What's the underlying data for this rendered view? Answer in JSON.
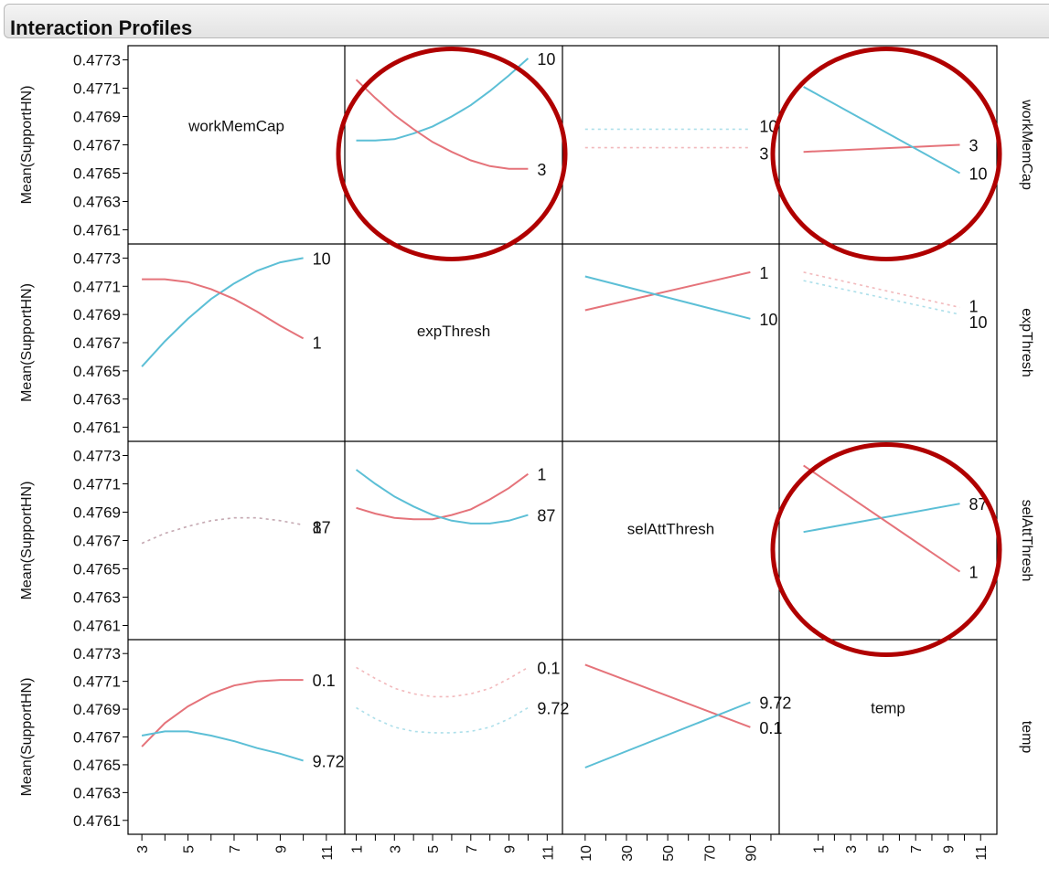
{
  "panel": {
    "title": "Interaction Profiles"
  },
  "chart_data": {
    "type": "line",
    "title": "Interaction Profiles",
    "ylabel": "Mean(SupportHN)",
    "ylim": [
      0.476,
      0.4774
    ],
    "y_ticks": [
      "0.4773",
      "0.4771",
      "0.4769",
      "0.4767",
      "0.4765",
      "0.4763",
      "0.4761"
    ],
    "y_tick_values": [
      0.4773,
      0.4771,
      0.4769,
      0.4767,
      0.4765,
      0.4763,
      0.4761
    ],
    "colors": {
      "red": "#e5737a",
      "blue": "#5cbfd6",
      "highlight": "#b00000",
      "grid": "#000000"
    },
    "factors": [
      {
        "name": "workMemCap",
        "xlim": [
          2.4,
          11.8
        ],
        "ticks": [
          3,
          4,
          5,
          6,
          7,
          8,
          9,
          10,
          11
        ],
        "tick_labels": [
          "3",
          "5",
          "7",
          "9",
          "11"
        ]
      },
      {
        "name": "expThresh",
        "xlim": [
          0.4,
          11.8
        ],
        "ticks": [
          1,
          2,
          3,
          4,
          5,
          6,
          7,
          8,
          9,
          10,
          11
        ],
        "tick_labels": [
          "1",
          "3",
          "5",
          "7",
          "9",
          "11"
        ]
      },
      {
        "name": "selAttThresh",
        "xlim": [
          -1,
          104
        ],
        "ticks": [
          10,
          20,
          30,
          40,
          50,
          60,
          70,
          80,
          90,
          100
        ],
        "tick_labels": [
          "10",
          "30",
          "50",
          "70",
          "90"
        ]
      },
      {
        "name": "temp",
        "xlim": [
          -1.4,
          12
        ],
        "ticks": [
          1,
          2,
          3,
          4,
          5,
          6,
          7,
          8,
          9,
          10,
          11
        ],
        "tick_labels": [
          "1",
          "3",
          "5",
          "7",
          "9",
          "11"
        ]
      }
    ],
    "highlighted_cells": [
      [
        0,
        1
      ],
      [
        0,
        3
      ],
      [
        2,
        3
      ]
    ],
    "cells": [
      {
        "row": 0,
        "col": 1,
        "series": [
          {
            "name": "10",
            "color": "blue",
            "dotted": false,
            "x": [
              1,
              2,
              3,
              4,
              5,
              6,
              7,
              8,
              9,
              10
            ],
            "y": [
              0.47673,
              0.47673,
              0.47674,
              0.47678,
              0.47683,
              0.4769,
              0.47698,
              0.47708,
              0.47719,
              0.47731
            ]
          },
          {
            "name": "3",
            "color": "red",
            "dotted": false,
            "x": [
              1,
              2,
              3,
              4,
              5,
              6,
              7,
              8,
              9,
              10
            ],
            "y": [
              0.47716,
              0.47703,
              0.47691,
              0.47681,
              0.47672,
              0.47665,
              0.47659,
              0.47655,
              0.47653,
              0.47653
            ]
          }
        ]
      },
      {
        "row": 0,
        "col": 2,
        "series": [
          {
            "name": "10",
            "color": "blue",
            "dotted": true,
            "x": [
              10,
              90
            ],
            "y": [
              0.47681,
              0.47681
            ]
          },
          {
            "name": "3",
            "color": "red",
            "dotted": true,
            "x": [
              10,
              90
            ],
            "y": [
              0.47668,
              0.47668
            ]
          }
        ]
      },
      {
        "row": 0,
        "col": 3,
        "series": [
          {
            "name": "3",
            "color": "red",
            "dotted": false,
            "x": [
              0.1,
              9.72
            ],
            "y": [
              0.47665,
              0.4767
            ]
          },
          {
            "name": "10",
            "color": "blue",
            "dotted": false,
            "x": [
              0.1,
              9.72
            ],
            "y": [
              0.47711,
              0.4765
            ]
          }
        ]
      },
      {
        "row": 1,
        "col": 0,
        "series": [
          {
            "name": "10",
            "color": "blue",
            "dotted": false,
            "x": [
              3,
              4,
              5,
              6,
              7,
              8,
              9,
              10
            ],
            "y": [
              0.47653,
              0.47671,
              0.47687,
              0.47701,
              0.47712,
              0.47721,
              0.47727,
              0.4773
            ]
          },
          {
            "name": "1",
            "color": "red",
            "dotted": false,
            "x": [
              3,
              4,
              5,
              6,
              7,
              8,
              9,
              10
            ],
            "y": [
              0.47715,
              0.47715,
              0.47713,
              0.47708,
              0.47701,
              0.47692,
              0.47682,
              0.47673
            ]
          }
        ]
      },
      {
        "row": 1,
        "col": 2,
        "series": [
          {
            "name": "1",
            "color": "red",
            "dotted": false,
            "x": [
              10,
              90
            ],
            "y": [
              0.47693,
              0.4772
            ]
          },
          {
            "name": "10",
            "color": "blue",
            "dotted": false,
            "x": [
              10,
              90
            ],
            "y": [
              0.47717,
              0.47687
            ]
          }
        ]
      },
      {
        "row": 1,
        "col": 3,
        "series": [
          {
            "name": "1",
            "color": "red",
            "dotted": true,
            "x": [
              0.1,
              9.72
            ],
            "y": [
              0.4772,
              0.47695
            ]
          },
          {
            "name": "10",
            "color": "blue",
            "dotted": true,
            "x": [
              0.1,
              9.72
            ],
            "y": [
              0.47714,
              0.4769
            ]
          }
        ]
      },
      {
        "row": 2,
        "col": 0,
        "series": [
          {
            "name": "87",
            "color": "blue",
            "dotted": true,
            "x": [
              3,
              4,
              5,
              6,
              7,
              8,
              9,
              10
            ],
            "y": [
              0.47668,
              0.47675,
              0.4768,
              0.47684,
              0.47686,
              0.47686,
              0.47684,
              0.47681
            ]
          },
          {
            "name": "1",
            "color": "red",
            "dotted": true,
            "x": [
              3,
              4,
              5,
              6,
              7,
              8,
              9,
              10
            ],
            "y": [
              0.47668,
              0.47675,
              0.4768,
              0.47684,
              0.47686,
              0.47686,
              0.47684,
              0.47681
            ]
          }
        ]
      },
      {
        "row": 2,
        "col": 1,
        "series": [
          {
            "name": "1",
            "color": "red",
            "dotted": false,
            "x": [
              1,
              2,
              3,
              4,
              5,
              6,
              7,
              8,
              9,
              10
            ],
            "y": [
              0.47693,
              0.47689,
              0.47686,
              0.47685,
              0.47685,
              0.47688,
              0.47692,
              0.47699,
              0.47707,
              0.47717
            ]
          },
          {
            "name": "87",
            "color": "blue",
            "dotted": false,
            "x": [
              1,
              2,
              3,
              4,
              5,
              6,
              7,
              8,
              9,
              10
            ],
            "y": [
              0.4772,
              0.4771,
              0.47701,
              0.47694,
              0.47688,
              0.47684,
              0.47682,
              0.47682,
              0.47684,
              0.47688
            ]
          }
        ]
      },
      {
        "row": 2,
        "col": 3,
        "series": [
          {
            "name": "87",
            "color": "blue",
            "dotted": false,
            "x": [
              0.1,
              9.72
            ],
            "y": [
              0.47676,
              0.47696
            ]
          },
          {
            "name": "1",
            "color": "red",
            "dotted": false,
            "x": [
              0.1,
              9.72
            ],
            "y": [
              0.47723,
              0.47648
            ]
          }
        ]
      },
      {
        "row": 3,
        "col": 0,
        "series": [
          {
            "name": "0.1",
            "color": "red",
            "dotted": false,
            "x": [
              3,
              4,
              5,
              6,
              7,
              8,
              9,
              10
            ],
            "y": [
              0.47663,
              0.4768,
              0.47692,
              0.47701,
              0.47707,
              0.4771,
              0.47711,
              0.47711
            ]
          },
          {
            "name": "9.72",
            "color": "blue",
            "dotted": false,
            "x": [
              3,
              4,
              5,
              6,
              7,
              8,
              9,
              10
            ],
            "y": [
              0.47671,
              0.47674,
              0.47674,
              0.47671,
              0.47667,
              0.47662,
              0.47658,
              0.47653
            ]
          }
        ]
      },
      {
        "row": 3,
        "col": 1,
        "series": [
          {
            "name": "0.1",
            "color": "red",
            "dotted": true,
            "x": [
              1,
              2,
              3,
              4,
              5,
              6,
              7,
              8,
              9,
              10
            ],
            "y": [
              0.4772,
              0.47712,
              0.47705,
              0.47701,
              0.47699,
              0.47699,
              0.47701,
              0.47705,
              0.47712,
              0.4772
            ]
          },
          {
            "name": "9.72",
            "color": "blue",
            "dotted": true,
            "x": [
              1,
              2,
              3,
              4,
              5,
              6,
              7,
              8,
              9,
              10
            ],
            "y": [
              0.47691,
              0.47683,
              0.47677,
              0.47674,
              0.47673,
              0.47673,
              0.47674,
              0.47677,
              0.47683,
              0.47691
            ]
          }
        ]
      },
      {
        "row": 3,
        "col": 2,
        "series": [
          {
            "name": "0.1",
            "color": "red",
            "dotted": false,
            "x": [
              10,
              90
            ],
            "y": [
              0.47722,
              0.47677
            ]
          },
          {
            "name": "9.72",
            "color": "blue",
            "dotted": false,
            "x": [
              10,
              90
            ],
            "y": [
              0.47648,
              0.47695
            ]
          }
        ]
      }
    ],
    "end_labels": [
      {
        "row": 0,
        "col": 1,
        "label": "10",
        "series": "10"
      },
      {
        "row": 0,
        "col": 1,
        "label": "3",
        "series": "3"
      },
      {
        "row": 0,
        "col": 2,
        "label": "10",
        "series": "10"
      },
      {
        "row": 0,
        "col": 2,
        "label": "3",
        "series": "3"
      },
      {
        "row": 0,
        "col": 3,
        "label": "3",
        "series": "3"
      },
      {
        "row": 0,
        "col": 3,
        "label": "10",
        "series": "10"
      },
      {
        "row": 1,
        "col": 0,
        "label": "10",
        "series": "10"
      },
      {
        "row": 1,
        "col": 0,
        "label": "1",
        "series": "1"
      },
      {
        "row": 1,
        "col": 2,
        "label": "1",
        "series": "1"
      },
      {
        "row": 1,
        "col": 2,
        "label": "10",
        "series": "10"
      },
      {
        "row": 1,
        "col": 3,
        "label": "1",
        "series": "1"
      },
      {
        "row": 1,
        "col": 3,
        "label": "10",
        "series": "10"
      },
      {
        "row": 2,
        "col": 0,
        "label": "87",
        "series": "87"
      },
      {
        "row": 2,
        "col": 0,
        "label": "1",
        "series": "1"
      },
      {
        "row": 2,
        "col": 1,
        "label": "1",
        "series": "1"
      },
      {
        "row": 2,
        "col": 1,
        "label": "87",
        "series": "87"
      },
      {
        "row": 2,
        "col": 3,
        "label": "87",
        "series": "87"
      },
      {
        "row": 2,
        "col": 3,
        "label": "1",
        "series": "1"
      },
      {
        "row": 3,
        "col": 0,
        "label": "0.1",
        "series": "0.1"
      },
      {
        "row": 3,
        "col": 0,
        "label": "9.72",
        "series": "9.72"
      },
      {
        "row": 3,
        "col": 1,
        "label": "0.1",
        "series": "0.1"
      },
      {
        "row": 3,
        "col": 1,
        "label": "9.72",
        "series": "9.72"
      },
      {
        "row": 3,
        "col": 2,
        "label": "9.72",
        "series": "9.72"
      },
      {
        "row": 3,
        "col": 2,
        "label": "0.1",
        "series": "0.1"
      }
    ]
  }
}
